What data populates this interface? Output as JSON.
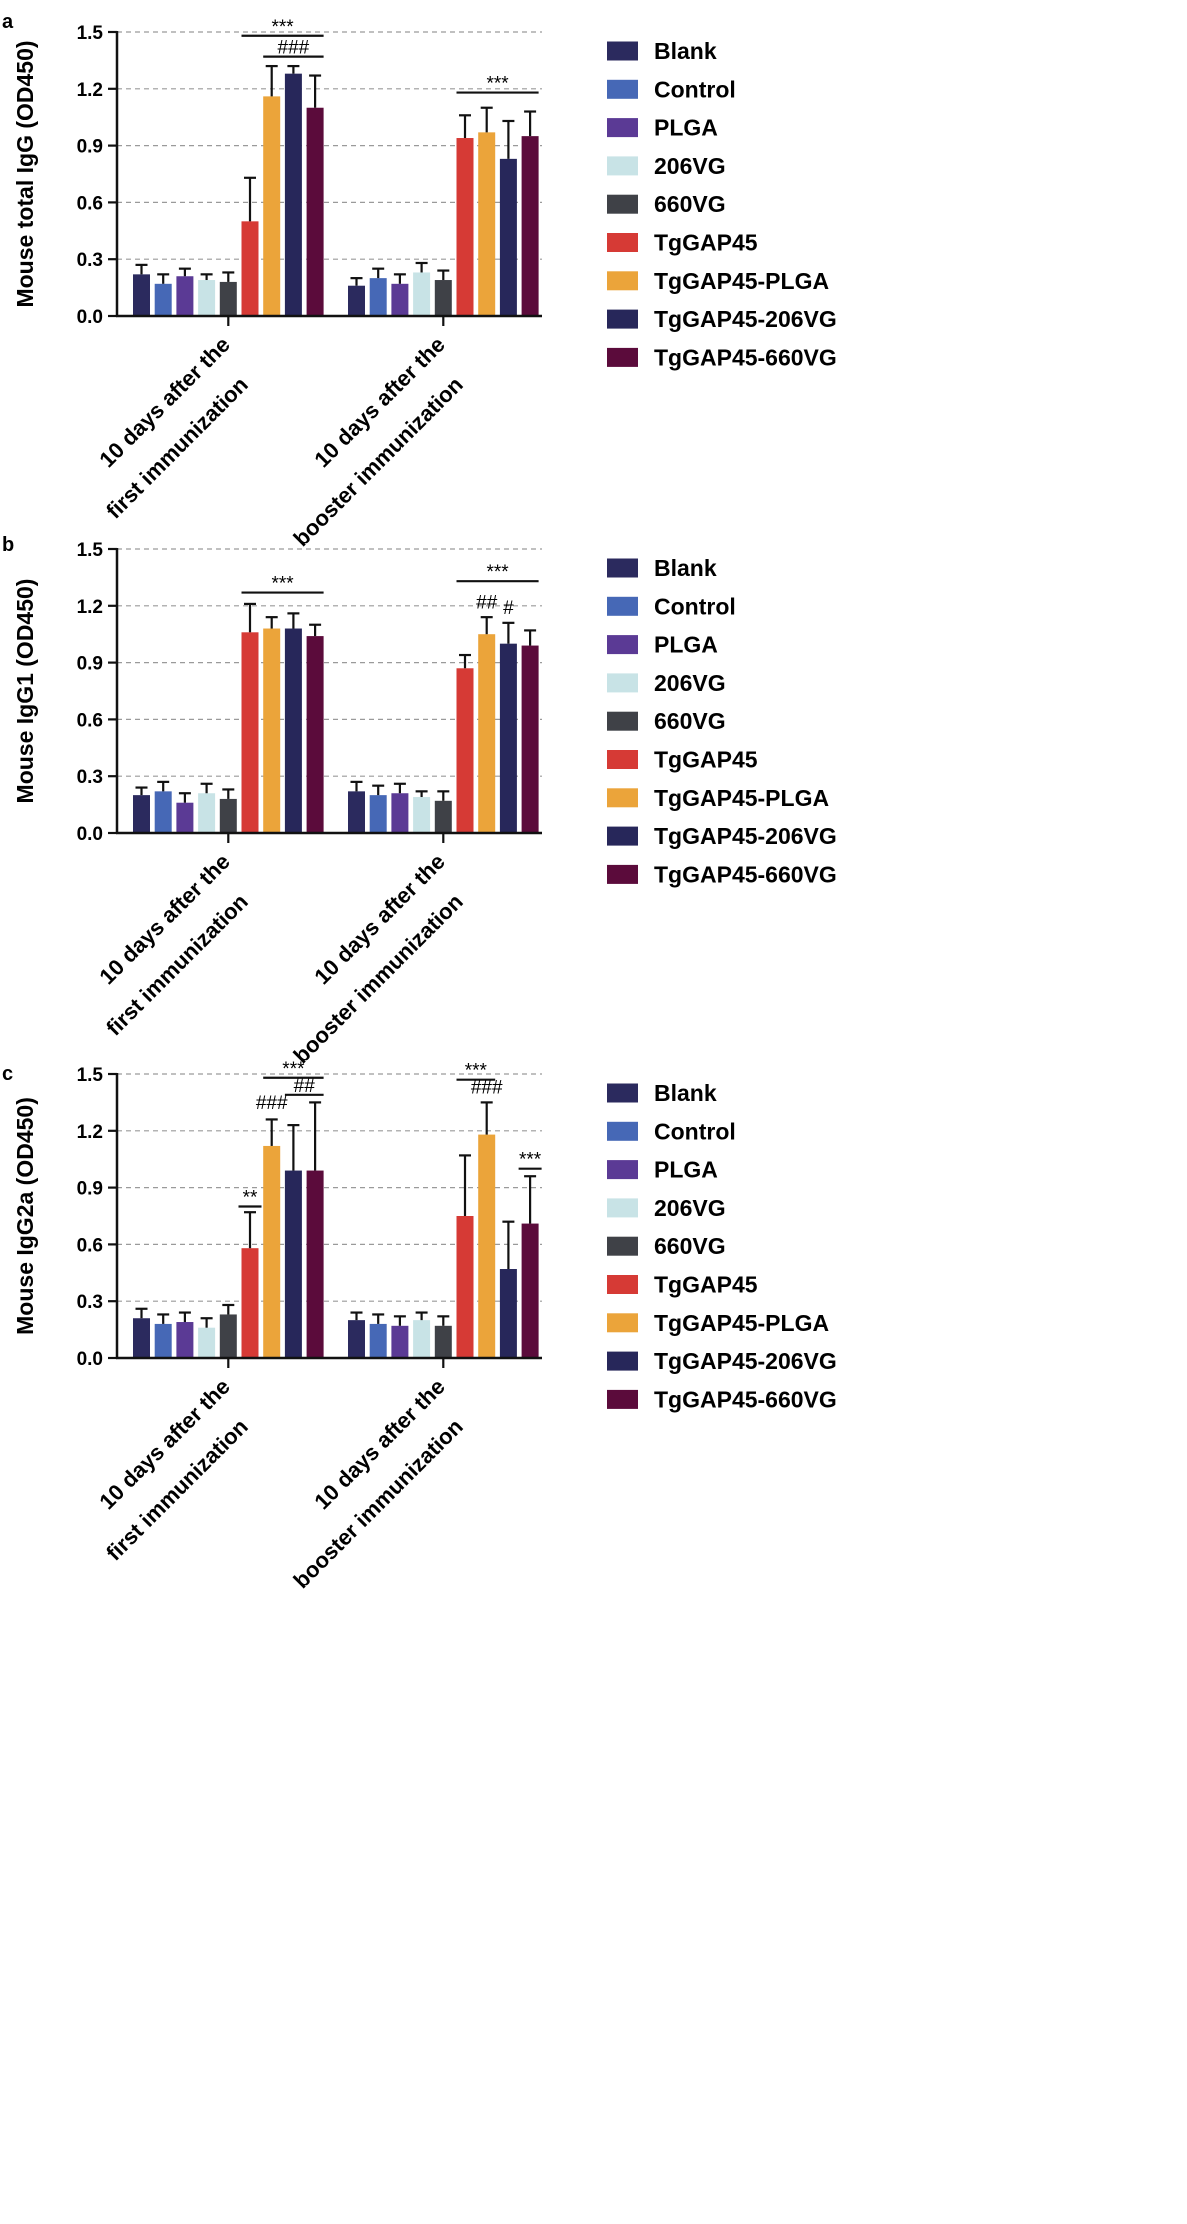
{
  "figure": {
    "panels_label": [
      "a",
      "b",
      "c"
    ]
  },
  "legend": {
    "items": [
      {
        "label": "Blank",
        "color": "#2b2a5e"
      },
      {
        "label": "Control",
        "color": "#4668b6"
      },
      {
        "label": "PLGA",
        "color": "#5b3a95"
      },
      {
        "label": "206VG",
        "color": "#c8e3e6"
      },
      {
        "label": "660VG",
        "color": "#3f4147"
      },
      {
        "label": "TgGAP45",
        "color": "#d63a35"
      },
      {
        "label": "TgGAP45-PLGA",
        "color": "#eba43a"
      },
      {
        "label": "TgGAP45-206VG",
        "color": "#27275a"
      },
      {
        "label": "TgGAP45-660VG",
        "color": "#5b0b3b"
      }
    ]
  },
  "chart_data": [
    {
      "type": "bar",
      "panel": "a",
      "ylabel": "Mouse total IgG (OD450)",
      "ylim": [
        0,
        1.5
      ],
      "yticks": [
        "0.0",
        "0.3",
        "0.6",
        "0.9",
        "1.2",
        "1.5"
      ],
      "grid": true,
      "categories": [
        {
          "line1": "10 days after the",
          "line2": "first immunization"
        },
        {
          "line1": "10 days after the",
          "line2": "booster immunization"
        }
      ],
      "series": [
        {
          "name": "Blank",
          "values": [
            0.22,
            0.16
          ],
          "errors": [
            0.05,
            0.04
          ]
        },
        {
          "name": "Control",
          "values": [
            0.17,
            0.2
          ],
          "errors": [
            0.05,
            0.05
          ]
        },
        {
          "name": "PLGA",
          "values": [
            0.21,
            0.17
          ],
          "errors": [
            0.04,
            0.05
          ]
        },
        {
          "name": "206VG",
          "values": [
            0.19,
            0.23
          ],
          "errors": [
            0.03,
            0.05
          ]
        },
        {
          "name": "660VG",
          "values": [
            0.18,
            0.19
          ],
          "errors": [
            0.05,
            0.05
          ]
        },
        {
          "name": "TgGAP45",
          "values": [
            0.5,
            0.94
          ],
          "errors": [
            0.23,
            0.12
          ]
        },
        {
          "name": "TgGAP45-PLGA",
          "values": [
            1.16,
            0.97
          ],
          "errors": [
            0.16,
            0.13
          ]
        },
        {
          "name": "TgGAP45-206VG",
          "values": [
            1.28,
            0.83
          ],
          "errors": [
            0.04,
            0.2
          ]
        },
        {
          "name": "TgGAP45-660VG",
          "values": [
            1.1,
            0.95
          ],
          "errors": [
            0.17,
            0.13
          ]
        }
      ],
      "annotations": [
        {
          "text": "***",
          "group": 0,
          "from": 5,
          "to": 8,
          "y": 1.48
        },
        {
          "text": "###",
          "group": 0,
          "from": 6,
          "to": 8,
          "y": 1.37
        },
        {
          "text": "***",
          "group": 1,
          "from": 5,
          "to": 8,
          "y": 1.18
        }
      ]
    },
    {
      "type": "bar",
      "panel": "b",
      "ylabel": "Mouse IgG1 (OD450)",
      "ylim": [
        0,
        1.5
      ],
      "yticks": [
        "0.0",
        "0.3",
        "0.6",
        "0.9",
        "1.2",
        "1.5"
      ],
      "grid": true,
      "categories": [
        {
          "line1": "10 days after the",
          "line2": "first immunization"
        },
        {
          "line1": "10 days after the",
          "line2": "booster immunization"
        }
      ],
      "series": [
        {
          "name": "Blank",
          "values": [
            0.2,
            0.22
          ],
          "errors": [
            0.04,
            0.05
          ]
        },
        {
          "name": "Control",
          "values": [
            0.22,
            0.2
          ],
          "errors": [
            0.05,
            0.05
          ]
        },
        {
          "name": "PLGA",
          "values": [
            0.16,
            0.21
          ],
          "errors": [
            0.05,
            0.05
          ]
        },
        {
          "name": "206VG",
          "values": [
            0.21,
            0.19
          ],
          "errors": [
            0.05,
            0.03
          ]
        },
        {
          "name": "660VG",
          "values": [
            0.18,
            0.17
          ],
          "errors": [
            0.05,
            0.05
          ]
        },
        {
          "name": "TgGAP45",
          "values": [
            1.06,
            0.87
          ],
          "errors": [
            0.15,
            0.07
          ]
        },
        {
          "name": "TgGAP45-PLGA",
          "values": [
            1.08,
            1.05
          ],
          "errors": [
            0.06,
            0.09
          ]
        },
        {
          "name": "TgGAP45-206VG",
          "values": [
            1.08,
            1.0
          ],
          "errors": [
            0.08,
            0.11
          ]
        },
        {
          "name": "TgGAP45-660VG",
          "values": [
            1.04,
            0.99
          ],
          "errors": [
            0.06,
            0.08
          ]
        }
      ],
      "annotations": [
        {
          "text": "***",
          "group": 0,
          "from": 5,
          "to": 8,
          "y": 1.27
        },
        {
          "text": "***",
          "group": 1,
          "from": 5,
          "to": 8,
          "y": 1.33
        },
        {
          "text": "##",
          "group": 1,
          "from": 6,
          "to": 6,
          "y": 1.17,
          "bar": false
        },
        {
          "text": "#",
          "group": 1,
          "from": 7,
          "to": 7,
          "y": 1.14,
          "bar": false
        }
      ]
    },
    {
      "type": "bar",
      "panel": "c",
      "ylabel": "Mouse IgG2a (OD450)",
      "ylim": [
        0,
        1.5
      ],
      "yticks": [
        "0.0",
        "0.3",
        "0.6",
        "0.9",
        "1.2",
        "1.5"
      ],
      "grid": true,
      "categories": [
        {
          "line1": "10 days after the",
          "line2": "first immunization"
        },
        {
          "line1": "10 days after the",
          "line2": "booster immunization"
        }
      ],
      "series": [
        {
          "name": "Blank",
          "values": [
            0.21,
            0.2
          ],
          "errors": [
            0.05,
            0.04
          ]
        },
        {
          "name": "Control",
          "values": [
            0.18,
            0.18
          ],
          "errors": [
            0.05,
            0.05
          ]
        },
        {
          "name": "PLGA",
          "values": [
            0.19,
            0.17
          ],
          "errors": [
            0.05,
            0.05
          ]
        },
        {
          "name": "206VG",
          "values": [
            0.16,
            0.2
          ],
          "errors": [
            0.05,
            0.04
          ]
        },
        {
          "name": "660VG",
          "values": [
            0.23,
            0.17
          ],
          "errors": [
            0.05,
            0.05
          ]
        },
        {
          "name": "TgGAP45",
          "values": [
            0.58,
            0.75
          ],
          "errors": [
            0.19,
            0.32
          ]
        },
        {
          "name": "TgGAP45-PLGA",
          "values": [
            1.12,
            1.18
          ],
          "errors": [
            0.14,
            0.17
          ]
        },
        {
          "name": "TgGAP45-206VG",
          "values": [
            0.99,
            0.47
          ],
          "errors": [
            0.24,
            0.25
          ]
        },
        {
          "name": "TgGAP45-660VG",
          "values": [
            0.99,
            0.71
          ],
          "errors": [
            0.36,
            0.25
          ]
        }
      ],
      "annotations": [
        {
          "text": "***",
          "group": 0,
          "from": 6,
          "to": 8,
          "y": 1.48
        },
        {
          "text": "##",
          "group": 0,
          "from": 7,
          "to": 8,
          "y": 1.39
        },
        {
          "text": "###",
          "group": 0,
          "from": 6,
          "to": 6,
          "y": 1.3,
          "bar": false
        },
        {
          "text": "**",
          "group": 0,
          "from": 5,
          "to": 5,
          "y": 0.8
        },
        {
          "text": "***",
          "group": 1,
          "from": 5,
          "to": 6,
          "y": 1.47
        },
        {
          "text": "###",
          "group": 1,
          "from": 6,
          "to": 6,
          "y": 1.38,
          "bar": false
        },
        {
          "text": "***",
          "group": 1,
          "from": 8,
          "to": 8,
          "y": 1.0
        }
      ]
    }
  ]
}
